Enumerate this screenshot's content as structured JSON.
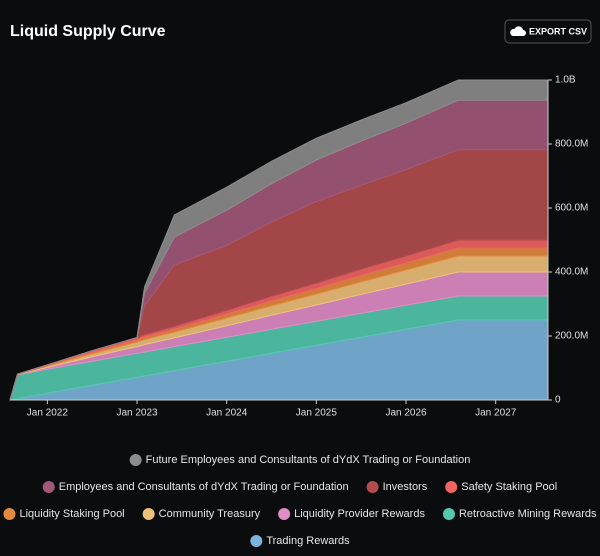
{
  "chart_data": {
    "type": "stacked-area",
    "title": "Liquid Supply Curve",
    "button": "EXPORT CSV",
    "x": [
      "2021-08",
      "2021-09",
      "2022-01",
      "2022-07",
      "2023-01",
      "2023-02",
      "2023-06",
      "2024-01",
      "2024-07",
      "2025-01",
      "2025-07",
      "2026-01",
      "2026-08",
      "2027-08"
    ],
    "xlim": [
      "2021-08",
      "2027-08"
    ],
    "xticks": [
      {
        "value": "2022-01",
        "label": "Jan 2022"
      },
      {
        "value": "2023-01",
        "label": "Jan 2023"
      },
      {
        "value": "2024-01",
        "label": "Jan 2024"
      },
      {
        "value": "2025-01",
        "label": "Jan 2025"
      },
      {
        "value": "2026-01",
        "label": "Jan 2026"
      },
      {
        "value": "2027-01",
        "label": "Jan 2027"
      }
    ],
    "ylim": [
      0,
      1000000000
    ],
    "yticks": [
      0,
      {
        "value": 200000000,
        "label": "200.0M"
      },
      {
        "value": 400000000,
        "label": "400.0M"
      },
      {
        "value": 600000000,
        "label": "600.0M"
      },
      {
        "value": 800000000,
        "label": "800.0M"
      },
      {
        "value": 1000000000,
        "label": "1.0B"
      }
    ],
    "series": [
      {
        "name": "Trading Rewards",
        "color": "#7ab4dc",
        "values": [
          0,
          4000000,
          21000000,
          46000000,
          71000000,
          75000000,
          92000000,
          121000000,
          146000000,
          171000000,
          196000000,
          221000000,
          250000000,
          250000000
        ]
      },
      {
        "name": "Retroactive Mining Rewards",
        "color": "#52c9ad",
        "values": [
          0,
          75000000,
          75000000,
          75000000,
          75000000,
          75000000,
          75000000,
          75000000,
          75000000,
          75000000,
          75000000,
          75000000,
          75000000,
          75000000
        ]
      },
      {
        "name": "Liquidity Provider Rewards",
        "color": "#e08cc6",
        "values": [
          0,
          1000000,
          6000000,
          14000000,
          21000000,
          23000000,
          27000000,
          36000000,
          44000000,
          51000000,
          59000000,
          66000000,
          75000000,
          75000000
        ]
      },
      {
        "name": "Community Treasury",
        "color": "#eec07a",
        "values": [
          0,
          1000000,
          4000000,
          9000000,
          14000000,
          15000000,
          18000000,
          24000000,
          29000000,
          34000000,
          39000000,
          44000000,
          50000000,
          50000000
        ]
      },
      {
        "name": "Liquidity Staking Pool",
        "color": "#e48a3e",
        "values": [
          0,
          0,
          2000000,
          5000000,
          7000000,
          8000000,
          9000000,
          12000000,
          15000000,
          17000000,
          20000000,
          22000000,
          25000000,
          25000000
        ]
      },
      {
        "name": "Safety Staking Pool",
        "color": "#f26464",
        "values": [
          0,
          0,
          2000000,
          5000000,
          7000000,
          8000000,
          9000000,
          12000000,
          15000000,
          17000000,
          20000000,
          22000000,
          25000000,
          25000000
        ]
      },
      {
        "name": "Investors",
        "color": "#b24c4f",
        "values": [
          0,
          0,
          0,
          0,
          0,
          90000000,
          192000000,
          203000000,
          232000000,
          255000000,
          262000000,
          270000000,
          282000000,
          282000000
        ]
      },
      {
        "name": "Employees and Consultants of dYdX Trading or Foundation",
        "color": "#a3587a",
        "values": [
          0,
          0,
          0,
          0,
          0,
          40000000,
          87000000,
          110000000,
          120000000,
          130000000,
          138000000,
          145000000,
          155000000,
          155000000
        ]
      },
      {
        "name": "Future Employees and Consultants of dYdX Trading or Foundation",
        "color": "#8c8c8c",
        "values": [
          0,
          0,
          0,
          0,
          0,
          19000000,
          69000000,
          72000000,
          70000000,
          68000000,
          66000000,
          64000000,
          63000000,
          63000000
        ]
      }
    ]
  }
}
